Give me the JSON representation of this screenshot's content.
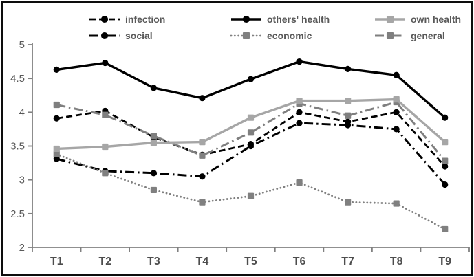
{
  "chart_data": {
    "type": "line",
    "title": "",
    "xlabel": "",
    "ylabel": "",
    "categories": [
      "T1",
      "T2",
      "T3",
      "T4",
      "T5",
      "T6",
      "T7",
      "T8",
      "T9"
    ],
    "series": [
      {
        "name": "infection",
        "color": "#000000",
        "line_style": "dash",
        "marker": "circle",
        "width": 2.8,
        "values": [
          3.91,
          4.02,
          3.63,
          3.37,
          3.53,
          4.0,
          3.86,
          4.0,
          3.2
        ]
      },
      {
        "name": "others' health",
        "color": "#000000",
        "line_style": "solid",
        "marker": "circle",
        "width": 3.4,
        "values": [
          4.63,
          4.73,
          4.36,
          4.21,
          4.49,
          4.75,
          4.64,
          4.55,
          3.92
        ]
      },
      {
        "name": "own health",
        "color": "#a6a6a6",
        "line_style": "solid",
        "marker": "square",
        "width": 3.4,
        "values": [
          3.46,
          3.49,
          3.55,
          3.56,
          3.92,
          4.17,
          4.17,
          4.19,
          3.56
        ]
      },
      {
        "name": "social",
        "color": "#000000",
        "line_style": "long-dash-dot",
        "marker": "circle",
        "width": 3.0,
        "values": [
          3.31,
          3.13,
          3.1,
          3.05,
          3.5,
          3.84,
          3.81,
          3.75,
          2.93
        ]
      },
      {
        "name": "economic",
        "color": "#808080",
        "line_style": "dotted",
        "marker": "square",
        "width": 2.8,
        "values": [
          3.38,
          3.1,
          2.85,
          2.67,
          2.76,
          2.96,
          2.67,
          2.65,
          2.27
        ]
      },
      {
        "name": "general",
        "color": "#7f7f7f",
        "line_style": "long-dash-dot",
        "marker": "square",
        "width": 3.0,
        "values": [
          4.11,
          3.96,
          3.65,
          3.36,
          3.7,
          4.13,
          3.95,
          4.15,
          3.28
        ]
      }
    ],
    "ylim": [
      2,
      5
    ],
    "yticks": [
      "5",
      "4.5",
      "4",
      "3.5",
      "3",
      "2.5",
      "2"
    ],
    "grid": false,
    "legend_position": "top",
    "legend_rows": [
      [
        "infection",
        "others' health",
        "own health"
      ],
      [
        "social",
        "economic",
        "general"
      ]
    ],
    "draw_order": [
      "infection",
      "social",
      "economic",
      "general",
      "own health",
      "others' health"
    ]
  },
  "colors": {
    "axis": "#808080",
    "tick_label": "#595959",
    "x_label": "#4d4d4d",
    "legend_text": "#595959",
    "frame": "#0d0d0d",
    "background": "#ffffff"
  }
}
